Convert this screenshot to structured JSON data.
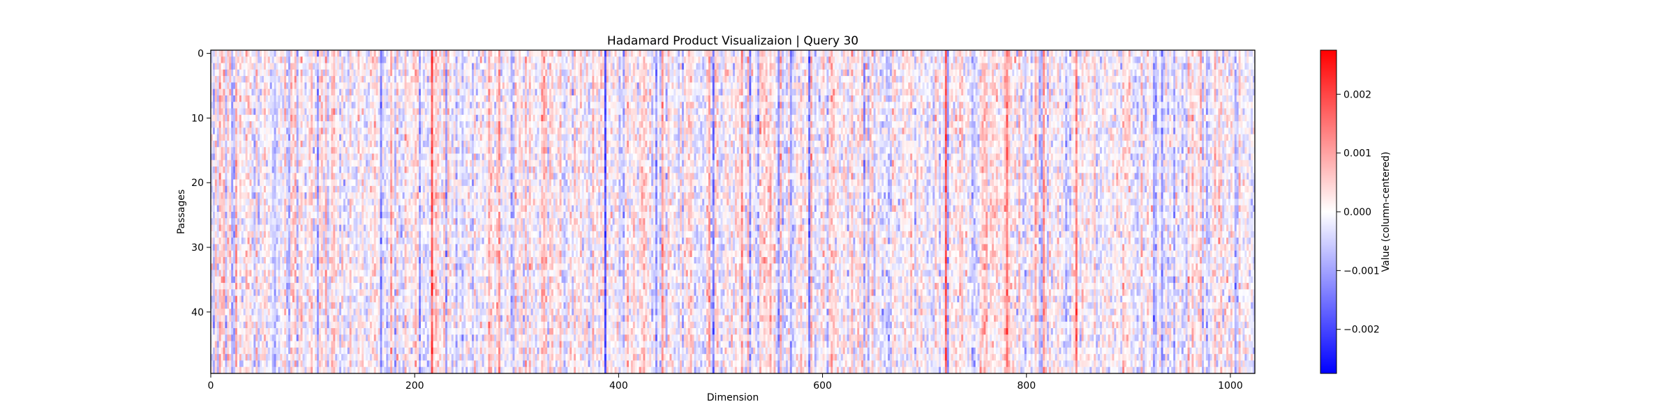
{
  "chart_data": {
    "type": "heatmap",
    "title": "Hadamard Product Visualizaion | Query 30",
    "xlabel": "Dimension",
    "ylabel": "Passages",
    "xlim": [
      0,
      1024
    ],
    "ylim": [
      50,
      0
    ],
    "x_ticks": [
      0,
      200,
      400,
      600,
      800,
      1000
    ],
    "y_ticks": [
      0,
      10,
      20,
      30,
      40
    ],
    "rows": 50,
    "columns": 1024,
    "value_range": [
      -0.00275,
      0.00275
    ],
    "colormap": "bwr",
    "colormap_stops": [
      "#0000ff",
      "#ffffff",
      "#ff0000"
    ],
    "colorbar": {
      "label": "Value (column-centered)",
      "ticks": [
        -0.002,
        -0.001,
        0.0,
        0.001,
        0.002
      ],
      "tick_labels": [
        "−0.002",
        "−0.001",
        "0.000",
        "0.001",
        "0.002"
      ]
    },
    "grid": false,
    "note_values": "per-cell values not readable; pattern shows vertical streaks with strong negative columns near dimensions 385, 555, 585 and strong positive columns near 215, 720, 780"
  }
}
